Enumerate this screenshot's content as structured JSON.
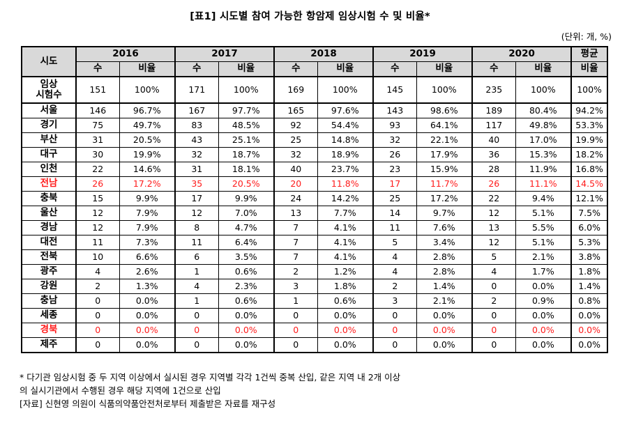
{
  "title": "[표1] 시도별 참여 가능한 항암제 임상시험 수 및 비율*",
  "unit": "(단위: 개, %)",
  "header": {
    "region_label": "시도",
    "years": [
      "2016",
      "2017",
      "2018",
      "2019",
      "2020"
    ],
    "avg_label": "평균",
    "count_label": "수",
    "ratio_label": "비율"
  },
  "rows": [
    {
      "region": "임상\n시험수",
      "values": [
        "151",
        "100%",
        "171",
        "100%",
        "169",
        "100%",
        "145",
        "100%",
        "235",
        "100%",
        "100%"
      ],
      "highlight": false,
      "total": true
    },
    {
      "region": "서울",
      "values": [
        "146",
        "96.7%",
        "167",
        "97.7%",
        "165",
        "97.6%",
        "143",
        "98.6%",
        "189",
        "80.4%",
        "94.2%"
      ],
      "highlight": false
    },
    {
      "region": "경기",
      "values": [
        "75",
        "49.7%",
        "83",
        "48.5%",
        "92",
        "54.4%",
        "93",
        "64.1%",
        "117",
        "49.8%",
        "53.3%"
      ],
      "highlight": false
    },
    {
      "region": "부산",
      "values": [
        "31",
        "20.5%",
        "43",
        "25.1%",
        "25",
        "14.8%",
        "32",
        "22.1%",
        "40",
        "17.0%",
        "19.9%"
      ],
      "highlight": false
    },
    {
      "region": "대구",
      "values": [
        "30",
        "19.9%",
        "32",
        "18.7%",
        "32",
        "18.9%",
        "26",
        "17.9%",
        "36",
        "15.3%",
        "18.2%"
      ],
      "highlight": false
    },
    {
      "region": "인천",
      "values": [
        "22",
        "14.6%",
        "31",
        "18.1%",
        "40",
        "23.7%",
        "23",
        "15.9%",
        "28",
        "11.9%",
        "16.8%"
      ],
      "highlight": false
    },
    {
      "region": "전남",
      "values": [
        "26",
        "17.2%",
        "35",
        "20.5%",
        "20",
        "11.8%",
        "17",
        "11.7%",
        "26",
        "11.1%",
        "14.5%"
      ],
      "highlight": true
    },
    {
      "region": "충북",
      "values": [
        "15",
        "9.9%",
        "17",
        "9.9%",
        "24",
        "14.2%",
        "25",
        "17.2%",
        "22",
        "9.4%",
        "12.1%"
      ],
      "highlight": false
    },
    {
      "region": "울산",
      "values": [
        "12",
        "7.9%",
        "12",
        "7.0%",
        "13",
        "7.7%",
        "14",
        "9.7%",
        "12",
        "5.1%",
        "7.5%"
      ],
      "highlight": false
    },
    {
      "region": "경남",
      "values": [
        "12",
        "7.9%",
        "8",
        "4.7%",
        "7",
        "4.1%",
        "11",
        "7.6%",
        "13",
        "5.5%",
        "6.0%"
      ],
      "highlight": false
    },
    {
      "region": "대전",
      "values": [
        "11",
        "7.3%",
        "11",
        "6.4%",
        "7",
        "4.1%",
        "5",
        "3.4%",
        "12",
        "5.1%",
        "5.3%"
      ],
      "highlight": false
    },
    {
      "region": "전북",
      "values": [
        "10",
        "6.6%",
        "6",
        "3.5%",
        "7",
        "4.1%",
        "4",
        "2.8%",
        "5",
        "2.1%",
        "3.8%"
      ],
      "highlight": false
    },
    {
      "region": "광주",
      "values": [
        "4",
        "2.6%",
        "1",
        "0.6%",
        "2",
        "1.2%",
        "4",
        "2.8%",
        "4",
        "1.7%",
        "1.8%"
      ],
      "highlight": false
    },
    {
      "region": "강원",
      "values": [
        "2",
        "1.3%",
        "4",
        "2.3%",
        "3",
        "1.8%",
        "2",
        "1.4%",
        "0",
        "0.0%",
        "1.4%"
      ],
      "highlight": false
    },
    {
      "region": "충남",
      "values": [
        "0",
        "0.0%",
        "1",
        "0.6%",
        "1",
        "0.6%",
        "3",
        "2.1%",
        "2",
        "0.9%",
        "0.8%"
      ],
      "highlight": false
    },
    {
      "region": "세종",
      "values": [
        "0",
        "0.0%",
        "0",
        "0.0%",
        "0",
        "0.0%",
        "0",
        "0.0%",
        "0",
        "0.0%",
        "0.0%"
      ],
      "highlight": false
    },
    {
      "region": "경북",
      "values": [
        "0",
        "0.0%",
        "0",
        "0.0%",
        "0",
        "0.0%",
        "0",
        "0.0%",
        "0",
        "0.0%",
        "0.0%"
      ],
      "highlight": true
    },
    {
      "region": "제주",
      "values": [
        "0",
        "0.0%",
        "0",
        "0.0%",
        "0",
        "0.0%",
        "0",
        "0.0%",
        "0",
        "0.0%",
        "0.0%"
      ],
      "highlight": false
    }
  ],
  "notes": {
    "line1": "* 다기관 임상시험 중 두 지역 이상에서 실시된 경우 지역별 각각 1건씩 중복 산입, 같은 지역 내 2개 이상",
    "line2": "  의 실시기관에서 수행된 경우 해당 지역에 1건으로 산입",
    "line3": "[자료] 신현영 의원이 식품의약품안전처로부터 제출받은 자료를 재구성"
  },
  "colors": {
    "header_bg": "#d9d9d9",
    "highlight_text": "#ff1a1a"
  }
}
